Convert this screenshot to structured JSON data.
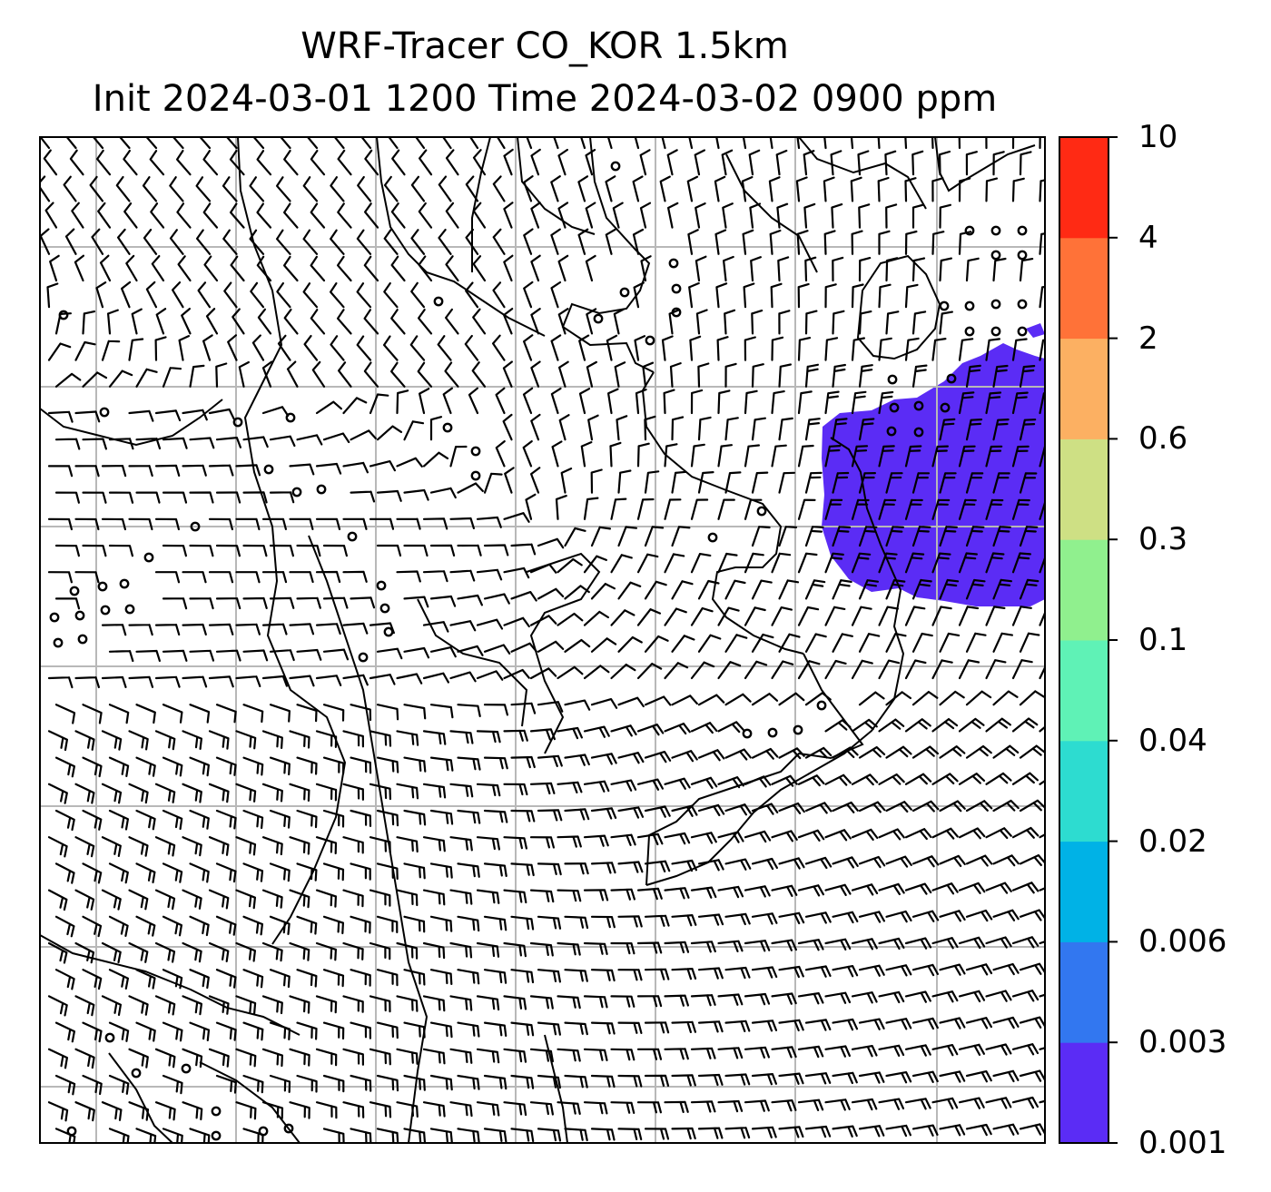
{
  "title": {
    "line1": "WRF-Tracer CO_KOR 1.5km",
    "line2": "Init 2024-03-01 1200 Time 2024-03-02 0900 ppm"
  },
  "colorbar": {
    "levels": [
      "0.001",
      "0.003",
      "0.006",
      "0.02",
      "0.04",
      "0.1",
      "0.3",
      "0.6",
      "2",
      "4",
      "10"
    ],
    "colors": [
      "#5b2cf5",
      "#3277f0",
      "#00b2e6",
      "#2ddcd0",
      "#5ff2b6",
      "#90f08e",
      "#cee084",
      "#fcb062",
      "#ff7238",
      "#ff2a14"
    ]
  },
  "map": {
    "grid": "on",
    "barb_color": "#000000",
    "plume_color": "#5b2cf5",
    "plume_level": "0.001–0.003 ppm"
  }
}
